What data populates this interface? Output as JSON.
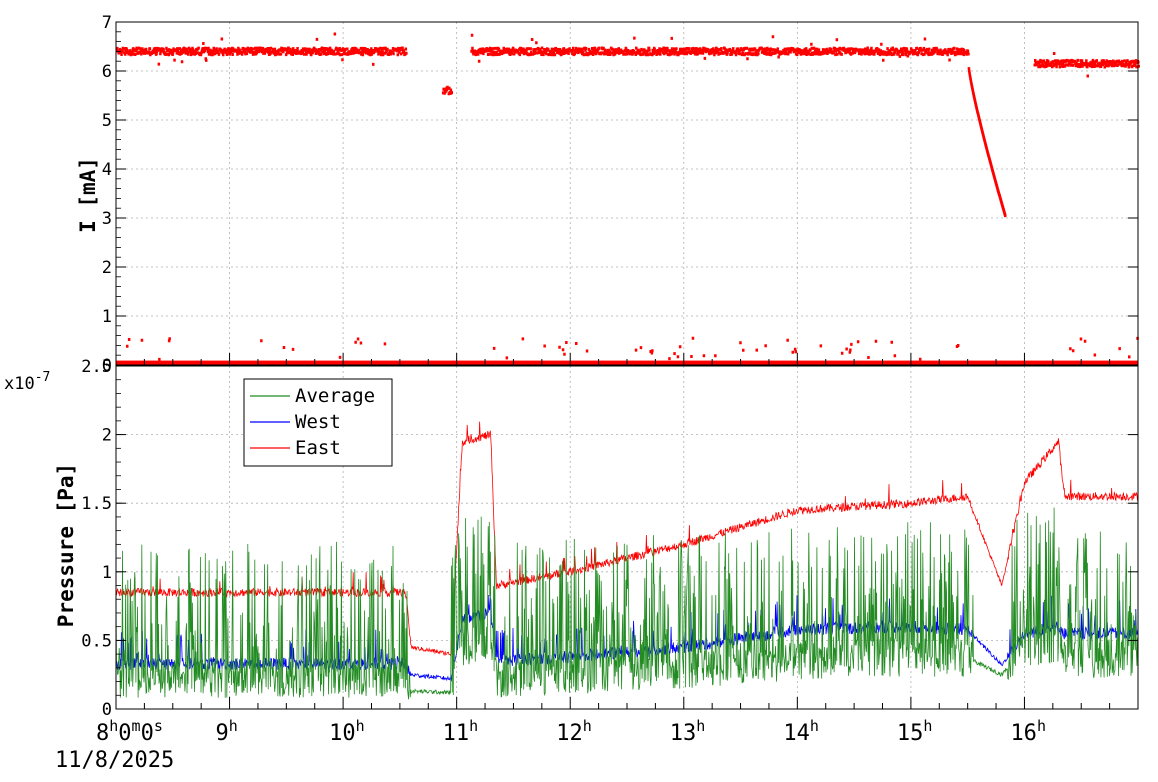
{
  "chart_data": [
    {
      "type": "scatter",
      "title": "",
      "xlabel": "",
      "ylabel": "I [mA]",
      "ylim": [
        0,
        7
      ],
      "yticks": [
        "0",
        "1",
        "2",
        "3",
        "4",
        "5",
        "6",
        "7"
      ],
      "grid": true,
      "series": [
        {
          "color": "#ff0000",
          "main_level": [
            {
              "t0": 8.0,
              "t1": 10.55,
              "value": 6.4
            },
            {
              "t0": 10.87,
              "t1": 10.95,
              "value": 5.6
            },
            {
              "t0": 11.12,
              "t1": 15.5,
              "value": 6.4
            },
            {
              "t0": 16.08,
              "t1": 17.0,
              "value": 6.15
            }
          ],
          "decay": {
            "t0": 15.5,
            "t1": 15.82,
            "v0": 6.05,
            "v1": 3.05
          },
          "baseline": {
            "t0": 8.0,
            "t1": 17.0,
            "value": 0.02
          }
        }
      ]
    },
    {
      "type": "line",
      "title": "",
      "xlabel": "",
      "ylabel": "Pressure [Pa]",
      "y_exponent": "x10",
      "y_exponent_power": "-7",
      "ylim": [
        0,
        2.5
      ],
      "yticks": [
        "0",
        "0.5",
        "1",
        "1.5",
        "2",
        "2.5"
      ],
      "grid": true,
      "legend_position": "top-left",
      "series": [
        {
          "name": "Average",
          "color": "#228b22",
          "levels": [
            [
              8.0,
              0.22
            ],
            [
              10.55,
              0.22
            ],
            [
              10.6,
              0.13
            ],
            [
              10.95,
              0.12
            ],
            [
              11.05,
              0.45
            ],
            [
              11.3,
              0.48
            ],
            [
              11.35,
              0.22
            ],
            [
              12.0,
              0.25
            ],
            [
              13.0,
              0.28
            ],
            [
              14.0,
              0.35
            ],
            [
              15.0,
              0.38
            ],
            [
              15.5,
              0.37
            ],
            [
              15.8,
              0.25
            ],
            [
              16.0,
              0.45
            ],
            [
              16.3,
              0.48
            ],
            [
              16.35,
              0.35
            ],
            [
              17.0,
              0.38
            ]
          ]
        },
        {
          "name": "West",
          "color": "#0000ff",
          "levels": [
            [
              8.0,
              0.33
            ],
            [
              10.55,
              0.33
            ],
            [
              10.6,
              0.25
            ],
            [
              10.95,
              0.22
            ],
            [
              11.05,
              0.65
            ],
            [
              11.3,
              0.7
            ],
            [
              11.35,
              0.35
            ],
            [
              12.0,
              0.38
            ],
            [
              13.0,
              0.45
            ],
            [
              14.0,
              0.58
            ],
            [
              15.0,
              0.6
            ],
            [
              15.5,
              0.58
            ],
            [
              15.8,
              0.32
            ],
            [
              16.0,
              0.55
            ],
            [
              16.3,
              0.6
            ],
            [
              16.35,
              0.55
            ],
            [
              17.0,
              0.55
            ]
          ]
        },
        {
          "name": "East",
          "color": "#ff0000",
          "levels": [
            [
              8.0,
              0.85
            ],
            [
              10.55,
              0.85
            ],
            [
              10.6,
              0.45
            ],
            [
              10.95,
              0.4
            ],
            [
              11.05,
              1.95
            ],
            [
              11.3,
              2.0
            ],
            [
              11.35,
              0.9
            ],
            [
              12.0,
              1.0
            ],
            [
              13.0,
              1.2
            ],
            [
              14.0,
              1.45
            ],
            [
              15.0,
              1.5
            ],
            [
              15.5,
              1.55
            ],
            [
              15.8,
              0.9
            ],
            [
              16.0,
              1.65
            ],
            [
              16.3,
              1.95
            ],
            [
              16.35,
              1.55
            ],
            [
              17.0,
              1.55
            ]
          ]
        }
      ]
    }
  ],
  "time_axis": {
    "start_label": {
      "h": "8",
      "m": "0",
      "s": "0"
    },
    "start_date": "11/8/2025",
    "hour_labels": [
      "9",
      "10",
      "11",
      "12",
      "13",
      "14",
      "15",
      "16"
    ],
    "range_hours": [
      8.0,
      17.0
    ]
  }
}
